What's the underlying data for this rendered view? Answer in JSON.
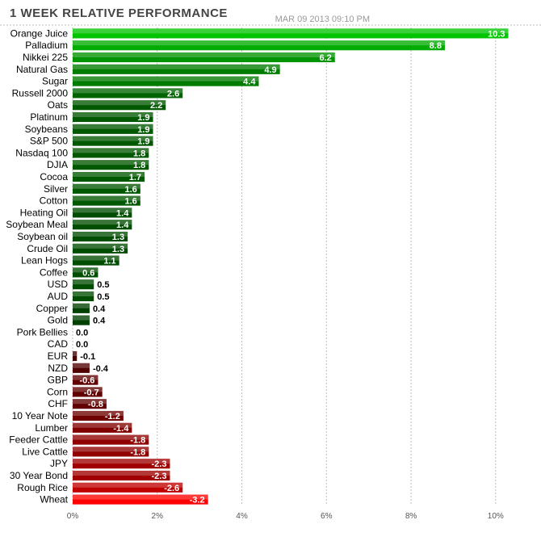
{
  "title": "1 WEEK RELATIVE PERFORMANCE",
  "timestamp": "MAR 09 2013 09:10 PM",
  "chart": {
    "type": "bar-horizontal",
    "xmin": 0,
    "xmax": 10.5,
    "xticks": [
      0,
      2,
      4,
      6,
      8,
      10
    ],
    "xtick_labels": [
      "0%",
      "2%",
      "4%",
      "6%",
      "8%",
      "10%"
    ],
    "grid_color": "#bbbbbb",
    "positive_palette": [
      "#00c400",
      "#00b800",
      "#00ac00",
      "#00a000",
      "#009400",
      "#008800",
      "#007c00",
      "#007000",
      "#006400",
      "#005800",
      "#004c00",
      "#004000"
    ],
    "negative_palette": [
      "#400000",
      "#500000",
      "#600000",
      "#700000",
      "#800000",
      "#900000",
      "#a00000",
      "#c00000",
      "#e00000",
      "#ff0000"
    ],
    "rows": [
      {
        "label": "Orange Juice",
        "value": 10.3
      },
      {
        "label": "Palladium",
        "value": 8.8
      },
      {
        "label": "Nikkei 225",
        "value": 6.2
      },
      {
        "label": "Natural Gas",
        "value": 4.9
      },
      {
        "label": "Sugar",
        "value": 4.4
      },
      {
        "label": "Russell 2000",
        "value": 2.6
      },
      {
        "label": "Oats",
        "value": 2.2
      },
      {
        "label": "Platinum",
        "value": 1.9
      },
      {
        "label": "Soybeans",
        "value": 1.9
      },
      {
        "label": "S&P 500",
        "value": 1.9
      },
      {
        "label": "Nasdaq 100",
        "value": 1.8
      },
      {
        "label": "DJIA",
        "value": 1.8
      },
      {
        "label": "Cocoa",
        "value": 1.7
      },
      {
        "label": "Silver",
        "value": 1.6
      },
      {
        "label": "Cotton",
        "value": 1.6
      },
      {
        "label": "Heating Oil",
        "value": 1.4
      },
      {
        "label": "Soybean Meal",
        "value": 1.4
      },
      {
        "label": "Soybean oil",
        "value": 1.3
      },
      {
        "label": "Crude Oil",
        "value": 1.3
      },
      {
        "label": "Lean Hogs",
        "value": 1.1
      },
      {
        "label": "Coffee",
        "value": 0.6
      },
      {
        "label": "USD",
        "value": 0.5
      },
      {
        "label": "AUD",
        "value": 0.5
      },
      {
        "label": "Copper",
        "value": 0.4
      },
      {
        "label": "Gold",
        "value": 0.4
      },
      {
        "label": "Pork Bellies",
        "value": 0.0
      },
      {
        "label": "CAD",
        "value": 0.0
      },
      {
        "label": "EUR",
        "value": -0.1
      },
      {
        "label": "NZD",
        "value": -0.4
      },
      {
        "label": "GBP",
        "value": -0.6
      },
      {
        "label": "Corn",
        "value": -0.7
      },
      {
        "label": "CHF",
        "value": -0.8
      },
      {
        "label": "10 Year Note",
        "value": -1.2
      },
      {
        "label": "Lumber",
        "value": -1.4
      },
      {
        "label": "Feeder Cattle",
        "value": -1.8
      },
      {
        "label": "Live Cattle",
        "value": -1.8
      },
      {
        "label": "JPY",
        "value": -2.3
      },
      {
        "label": "30 Year Bond",
        "value": -2.3
      },
      {
        "label": "Rough Rice",
        "value": -2.6
      },
      {
        "label": "Wheat",
        "value": -3.2
      }
    ]
  }
}
